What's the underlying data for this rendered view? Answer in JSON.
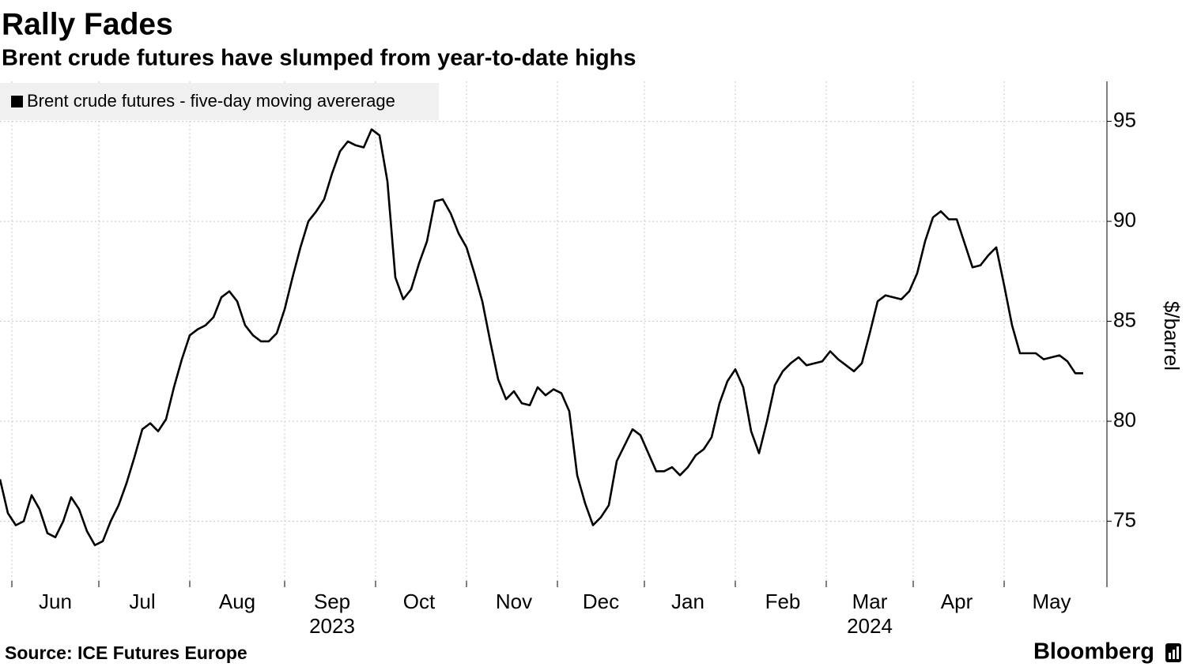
{
  "chart_data": {
    "type": "line",
    "title": "Rally Fades",
    "subtitle": "Brent crude futures have slumped from year-to-date highs",
    "y_label": "$/barrel",
    "source": "Source: ICE Futures Europe",
    "brand": "Bloomberg",
    "categories": [
      null,
      null,
      null,
      null,
      null,
      null,
      null,
      "Jun",
      null,
      null,
      null,
      null,
      null,
      null,
      null,
      null,
      null,
      null,
      "Jul",
      null,
      null,
      null,
      null,
      null,
      null,
      null,
      null,
      null,
      null,
      null,
      "Aug",
      null,
      null,
      null,
      null,
      null,
      null,
      null,
      null,
      null,
      null,
      null,
      "Sep\n2023",
      null,
      null,
      null,
      null,
      null,
      null,
      null,
      null,
      null,
      null,
      "Oct",
      null,
      null,
      null,
      null,
      null,
      null,
      null,
      null,
      null,
      null,
      null,
      "Nov",
      null,
      null,
      null,
      null,
      null,
      null,
      null,
      null,
      null,
      null,
      "Dec",
      null,
      null,
      null,
      null,
      null,
      null,
      null,
      null,
      null,
      null,
      "Jan",
      null,
      null,
      null,
      null,
      null,
      null,
      null,
      null,
      null,
      null,
      null,
      "Feb",
      null,
      null,
      null,
      null,
      null,
      null,
      null,
      null,
      null,
      null,
      "Mar\n2024",
      null,
      null,
      null,
      null,
      null,
      null,
      null,
      null,
      null,
      null,
      "Apr",
      null,
      null,
      null,
      null,
      null,
      null,
      null,
      null,
      null,
      null,
      null,
      "May",
      null,
      null,
      null,
      null
    ],
    "series": [
      {
        "name": "Brent crude futures - five-day moving avererage",
        "color": "#000000",
        "values": [
          77.1,
          75.4,
          74.8,
          75.0,
          76.3,
          75.6,
          74.4,
          74.2,
          75.0,
          76.2,
          75.6,
          74.5,
          73.8,
          74.0,
          75.0,
          75.8,
          76.9,
          78.2,
          79.6,
          79.9,
          79.5,
          80.1,
          81.7,
          83.1,
          84.3,
          84.6,
          84.8,
          85.2,
          86.2,
          86.5,
          86.0,
          84.8,
          84.3,
          84.0,
          84.0,
          84.4,
          85.6,
          87.2,
          88.7,
          90.0,
          90.5,
          91.1,
          92.4,
          93.5,
          94.0,
          93.8,
          93.7,
          94.6,
          94.3,
          92.0,
          87.2,
          86.1,
          86.6,
          87.9,
          89.0,
          91.0,
          91.1,
          90.4,
          89.4,
          88.7,
          87.4,
          86.0,
          84.0,
          82.1,
          81.1,
          81.5,
          80.9,
          80.8,
          81.7,
          81.3,
          81.6,
          81.4,
          80.5,
          77.3,
          75.9,
          74.8,
          75.2,
          75.8,
          78.0,
          78.8,
          79.6,
          79.3,
          78.4,
          77.5,
          77.5,
          77.7,
          77.3,
          77.7,
          78.3,
          78.6,
          79.2,
          80.9,
          82.0,
          82.6,
          81.7,
          79.5,
          78.4,
          80.0,
          81.8,
          82.5,
          82.9,
          83.2,
          82.8,
          82.9,
          83.0,
          83.5,
          83.1,
          82.8,
          82.5,
          82.9,
          84.4,
          86.0,
          86.3,
          86.2,
          86.1,
          86.5,
          87.4,
          89.0,
          90.2,
          90.5,
          90.1,
          90.1,
          88.9,
          87.7,
          87.8,
          88.3,
          88.7,
          86.8,
          84.8,
          83.4,
          83.4,
          83.4,
          83.1,
          83.2,
          83.3,
          83.0,
          82.4,
          82.4
        ]
      }
    ],
    "ylim": [
      71.7,
      97
    ],
    "yticks": [
      75,
      80,
      85,
      90,
      95
    ],
    "grid": true,
    "legend": "top-left"
  }
}
